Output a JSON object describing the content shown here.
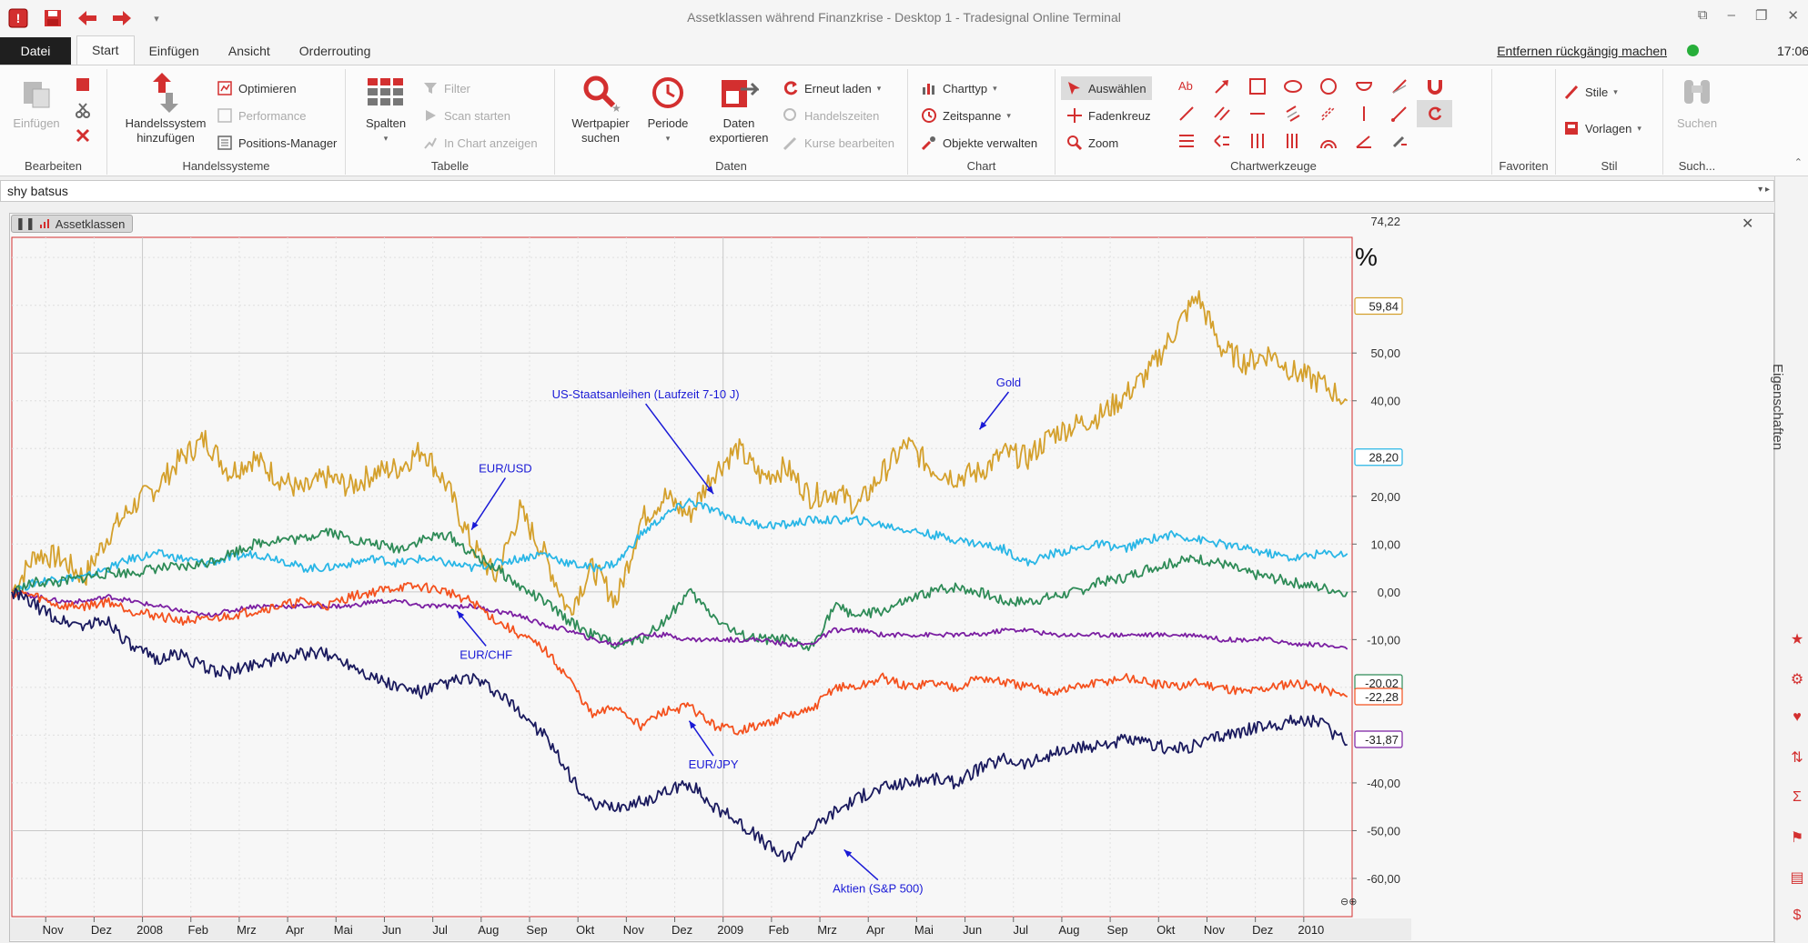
{
  "app": {
    "title": "Assetklassen während Finanzkrise - Desktop 1 - Tradesignal Online Terminal",
    "clock": "17:06",
    "undo_label": "Entfernen rückgängig machen"
  },
  "tabs": [
    "Datei",
    "Start",
    "Einfügen",
    "Ansicht",
    "Orderrouting"
  ],
  "ribbon": {
    "bearbeiten": {
      "label": "Bearbeiten",
      "einfuegen": "Einfügen"
    },
    "handelssysteme": {
      "label": "Handelssysteme",
      "add_line1": "Handelssystem",
      "add_line2": "hinzufügen",
      "optimieren": "Optimieren",
      "performance": "Performance",
      "positions": "Positions-Manager"
    },
    "tabelle": {
      "label": "Tabelle",
      "spalten": "Spalten",
      "filter": "Filter",
      "scan": "Scan starten",
      "inchart": "In Chart anzeigen"
    },
    "daten": {
      "label": "Daten",
      "wertpapier1": "Wertpapier",
      "wertpapier2": "suchen",
      "periode": "Periode",
      "export1": "Daten",
      "export2": "exportieren",
      "reload": "Erneut laden",
      "handelszeiten": "Handelszeiten",
      "kurse": "Kurse bearbeiten"
    },
    "chart": {
      "label": "Chart",
      "charttyp": "Charttyp",
      "zeitspanne": "Zeitspanne",
      "objekte": "Objekte verwalten"
    },
    "chartwerkzeuge": {
      "label": "Chartwerkzeuge",
      "auswaehlen": "Auswählen",
      "fadenkreuz": "Fadenkreuz",
      "zoom": "Zoom"
    },
    "favoriten": {
      "label": "Favoriten"
    },
    "stil": {
      "label": "Stil",
      "stile": "Stile",
      "vorlagen": "Vorlagen"
    },
    "suche": {
      "label": "Such...",
      "suchen": "Suchen"
    }
  },
  "symbol_input": {
    "value": "shy batsus"
  },
  "chart_window": {
    "tab_label": "Assetklassen"
  },
  "side_panel": {
    "label": "Eigenschaften"
  },
  "chart_data": {
    "type": "line",
    "xlabel": "",
    "ylabel": "%",
    "ylim": [
      -68,
      74.22
    ],
    "y_ticks": [
      "50,00",
      "40,00",
      "20,00",
      "10,00",
      "0,00",
      "-10,00",
      "-40,00",
      "-50,00",
      "-60,00"
    ],
    "x_ticks": [
      "Nov",
      "Dez",
      "2008",
      "Feb",
      "Mrz",
      "Apr",
      "Mai",
      "Jun",
      "Jul",
      "Aug",
      "Sep",
      "Okt",
      "Nov",
      "Dez",
      "2009",
      "Feb",
      "Mrz",
      "Apr",
      "Mai",
      "Jun",
      "Jul",
      "Aug",
      "Sep",
      "Okt",
      "Nov",
      "Dez",
      "2010"
    ],
    "x_tick_positions": [
      0.7,
      1.7,
      2.7,
      3.7,
      4.7,
      5.7,
      6.7,
      7.7,
      8.7,
      9.7,
      10.7,
      11.7,
      12.7,
      13.7,
      14.7,
      15.7,
      16.7,
      17.7,
      18.7,
      19.7,
      20.7,
      21.7,
      22.7,
      23.7,
      24.7,
      25.7,
      26.7
    ],
    "x_range": [
      0,
      27.7
    ],
    "top_value_label": "74,22",
    "value_labels": [
      {
        "text": "59,84",
        "value": 59.84,
        "color": "#d4a02c"
      },
      {
        "text": "28,20",
        "value": 28.2,
        "color": "#29b6e6"
      },
      {
        "text": "-20,02",
        "value": -20.02,
        "color": "#2e8b57"
      },
      {
        "text": "-22,28",
        "value": -22.28,
        "color": "#f4511e"
      },
      {
        "text": "-31,87",
        "value": -31.87,
        "color": "#7b1fa2"
      }
    ],
    "series": [
      {
        "name": "Gold",
        "color": "#d4a02c",
        "x": [
          0,
          0.5,
          1,
          1.5,
          2,
          2.5,
          3,
          3.5,
          4,
          4.5,
          5,
          5.5,
          6,
          6.5,
          7,
          7.5,
          8,
          8.5,
          9,
          9.5,
          10,
          10.5,
          11,
          11.5,
          12,
          12.5,
          13,
          13.5,
          14,
          14.5,
          15,
          15.5,
          16,
          16.5,
          17,
          17.5,
          18,
          18.5,
          19,
          19.5,
          20,
          20.5,
          21,
          21.5,
          22,
          22.5,
          23,
          23.5,
          24,
          24.5,
          25,
          25.5,
          26,
          26.5,
          27,
          27.6
        ],
        "y": [
          0,
          8,
          7,
          3,
          12,
          18,
          22,
          28,
          32,
          25,
          28,
          24,
          21,
          24,
          22,
          25,
          26,
          30,
          22,
          10,
          3,
          17,
          8,
          -4,
          5,
          -2,
          15,
          20,
          16,
          25,
          30,
          24,
          26,
          20,
          21,
          18,
          25,
          31,
          26,
          24,
          25,
          29,
          28,
          33,
          35,
          37,
          41,
          46,
          54,
          62,
          51,
          48,
          50,
          46,
          44,
          40
        ]
      },
      {
        "name": "US-Staatsanleihen (Laufzeit 7-10 J)",
        "color": "#29b6e6",
        "x": [
          0,
          0.5,
          1,
          1.5,
          2,
          2.5,
          3,
          3.5,
          4,
          4.5,
          5,
          5.5,
          6,
          6.5,
          7,
          7.5,
          8,
          8.5,
          9,
          9.5,
          10,
          10.5,
          11,
          11.5,
          12,
          12.5,
          13,
          13.5,
          14,
          14.5,
          15,
          15.5,
          16,
          16.5,
          17,
          17.5,
          18,
          18.5,
          19,
          19.5,
          20,
          20.5,
          21,
          21.5,
          22,
          22.5,
          23,
          23.5,
          24,
          24.5,
          25,
          25.5,
          26,
          26.5,
          27,
          27.6
        ],
        "y": [
          0,
          2,
          3,
          3,
          5,
          7,
          8,
          7,
          6,
          7,
          8,
          7,
          5,
          5,
          6,
          7,
          6,
          7,
          6,
          5,
          6,
          7,
          8,
          6,
          5,
          6,
          12,
          16,
          19,
          17,
          15,
          14,
          14,
          15,
          15,
          15,
          14,
          13,
          12,
          11,
          10,
          9,
          6,
          8,
          9,
          10,
          9,
          11,
          12,
          11,
          10,
          9,
          8,
          7,
          8,
          8
        ]
      },
      {
        "name": "EUR/USD",
        "color": "#2e8b57",
        "x": [
          0,
          0.5,
          1,
          1.5,
          2,
          2.5,
          3,
          3.5,
          4,
          4.5,
          5,
          5.5,
          6,
          6.5,
          7,
          7.5,
          8,
          8.5,
          9,
          9.5,
          10,
          10.5,
          11,
          11.5,
          12,
          12.5,
          13,
          13.5,
          14,
          14.5,
          15,
          15.5,
          16,
          16.5,
          17,
          17.5,
          18,
          18.5,
          19,
          19.5,
          20,
          20.5,
          21,
          21.5,
          22,
          22.5,
          23,
          23.5,
          24,
          24.5,
          25,
          25.5,
          26,
          26.5,
          27,
          27.6
        ],
        "y": [
          0,
          2,
          2,
          3,
          4,
          4,
          5,
          5,
          6,
          8,
          10,
          11,
          11,
          13,
          11,
          10,
          9,
          11,
          12,
          8,
          5,
          1,
          -2,
          -6,
          -9,
          -11,
          -10,
          -6,
          0,
          -5,
          -9,
          -10,
          -10,
          -12,
          -3,
          -5,
          -4,
          -2,
          0,
          1,
          0,
          -2,
          -2,
          -1,
          0,
          2,
          3,
          5,
          6,
          7,
          6,
          4,
          3,
          2,
          1,
          0
        ]
      },
      {
        "name": "EUR/CHF",
        "color": "#7b1fa2",
        "x": [
          0,
          0.5,
          1,
          1.5,
          2,
          2.5,
          3,
          3.5,
          4,
          4.5,
          5,
          5.5,
          6,
          6.5,
          7,
          7.5,
          8,
          8.5,
          9,
          9.5,
          10,
          10.5,
          11,
          11.5,
          12,
          12.5,
          13,
          13.5,
          14,
          14.5,
          15,
          15.5,
          16,
          16.5,
          17,
          17.5,
          18,
          18.5,
          19,
          19.5,
          20,
          20.5,
          21,
          21.5,
          22,
          22.5,
          23,
          23.5,
          24,
          24.5,
          25,
          25.5,
          26,
          26.5,
          27,
          27.6
        ],
        "y": [
          0,
          -1,
          -2,
          -2,
          -1,
          -2,
          -3,
          -4,
          -5,
          -4,
          -3,
          -3,
          -3,
          -3,
          -3,
          -2,
          -2,
          -3,
          -3,
          -3,
          -4,
          -5,
          -7,
          -8,
          -10,
          -11,
          -9,
          -9,
          -10,
          -10,
          -10,
          -10,
          -11,
          -11,
          -8,
          -8,
          -9,
          -9,
          -9,
          -9,
          -9,
          -8,
          -8,
          -9,
          -9,
          -9,
          -9,
          -9,
          -9,
          -9,
          -10,
          -10,
          -10,
          -11,
          -11,
          -12
        ]
      },
      {
        "name": "EUR/JPY",
        "color": "#f4511e",
        "x": [
          0,
          0.5,
          1,
          1.5,
          2,
          2.5,
          3,
          3.5,
          4,
          4.5,
          5,
          5.5,
          6,
          6.5,
          7,
          7.5,
          8,
          8.5,
          9,
          9.5,
          10,
          10.5,
          11,
          11.5,
          12,
          12.5,
          13,
          13.5,
          14,
          14.5,
          15,
          15.5,
          16,
          16.5,
          17,
          17.5,
          18,
          18.5,
          19,
          19.5,
          20,
          20.5,
          21,
          21.5,
          22,
          22.5,
          23,
          23.5,
          24,
          24.5,
          25,
          25.5,
          26,
          26.5,
          27,
          27.6
        ],
        "y": [
          0,
          -1,
          -3,
          -3,
          -2,
          -4,
          -5,
          -6,
          -6,
          -5,
          -4,
          -3,
          -2,
          -3,
          -1,
          0,
          1,
          1,
          0,
          -2,
          -6,
          -9,
          -12,
          -18,
          -26,
          -24,
          -28,
          -25,
          -24,
          -28,
          -29,
          -28,
          -26,
          -25,
          -20,
          -20,
          -18,
          -20,
          -19,
          -20,
          -18,
          -19,
          -20,
          -21,
          -20,
          -19,
          -18,
          -19,
          -20,
          -19,
          -20,
          -21,
          -20,
          -19,
          -20,
          -22
        ]
      },
      {
        "name": "Aktien (S&P 500)",
        "color": "#1a1a5e",
        "x": [
          0,
          0.5,
          1,
          1.5,
          2,
          2.5,
          3,
          3.5,
          4,
          4.5,
          5,
          5.5,
          6,
          6.5,
          7,
          7.5,
          8,
          8.5,
          9,
          9.5,
          10,
          10.5,
          11,
          11.5,
          12,
          12.5,
          13,
          13.5,
          14,
          14.5,
          15,
          15.5,
          16,
          16.5,
          17,
          17.5,
          18,
          18.5,
          19,
          19.5,
          20,
          20.5,
          21,
          21.5,
          22,
          22.5,
          23,
          23.5,
          24,
          24.5,
          25,
          25.5,
          26,
          26.5,
          27,
          27.6
        ],
        "y": [
          0,
          -3,
          -6,
          -7,
          -6,
          -12,
          -14,
          -13,
          -16,
          -17,
          -15,
          -14,
          -13,
          -13,
          -15,
          -18,
          -20,
          -21,
          -19,
          -18,
          -21,
          -25,
          -30,
          -38,
          -45,
          -45,
          -44,
          -42,
          -40,
          -45,
          -48,
          -52,
          -56,
          -50,
          -46,
          -43,
          -41,
          -40,
          -39,
          -40,
          -37,
          -35,
          -36,
          -34,
          -33,
          -32,
          -31,
          -32,
          -33,
          -32,
          -30,
          -29,
          -28,
          -27,
          -27,
          -32
        ]
      }
    ],
    "annotations": [
      {
        "text": "Gold",
        "x": 20.6,
        "y": 43
      },
      {
        "text": "US-Staatsanleihen (Laufzeit 7-10 J)",
        "x": 13.1,
        "y": 40.5
      },
      {
        "text": "EUR/USD",
        "x": 10.2,
        "y": 25
      },
      {
        "text": "EUR/CHF",
        "x": 9.8,
        "y": -14
      },
      {
        "text": "EUR/JPY",
        "x": 14.5,
        "y": -37
      },
      {
        "text": "Aktien (S&P 500)",
        "x": 17.9,
        "y": -63
      }
    ]
  }
}
